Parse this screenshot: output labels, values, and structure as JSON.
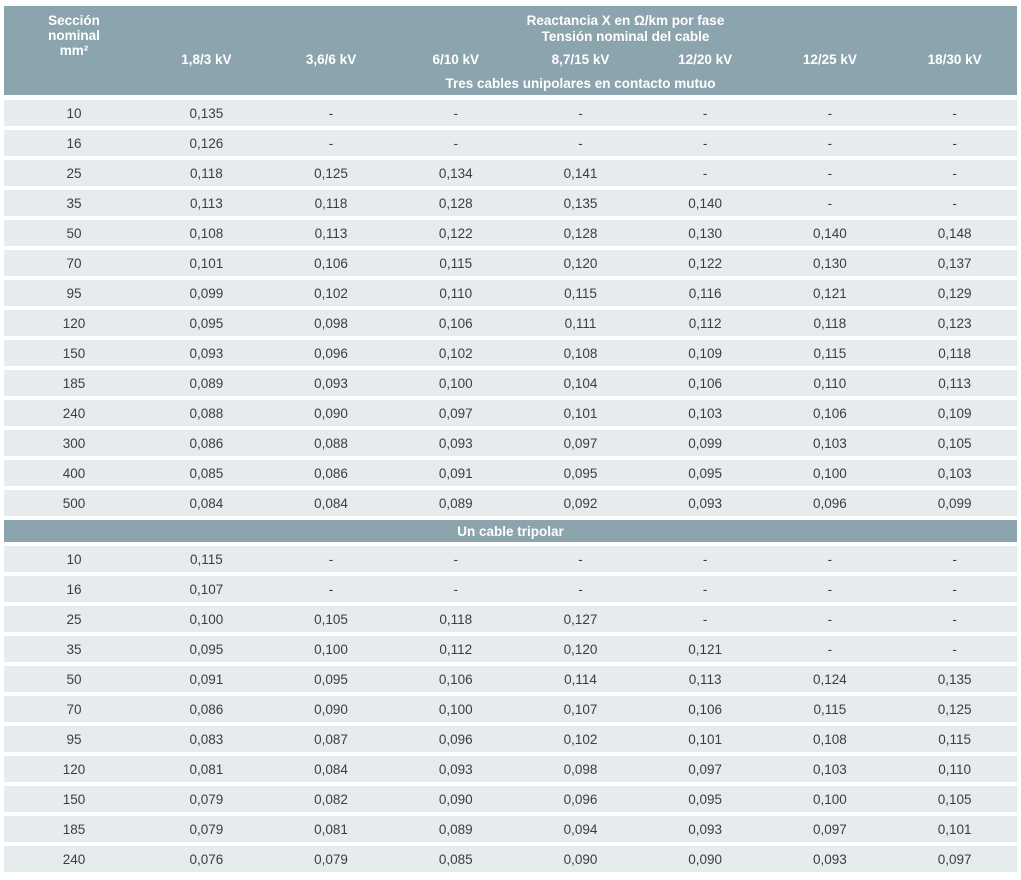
{
  "table": {
    "col1_header_lines": [
      "Sección",
      "nominal",
      "mm²"
    ],
    "title_line1": "Reactancia X en Ω/km por fase",
    "title_line2": "Tensión nominal del cable",
    "voltage_columns": [
      "1,8/3 kV",
      "3,6/6 kV",
      "6/10 kV",
      "8,7/15 kV",
      "12/20 kV",
      "12/25 kV",
      "18/30 kV"
    ],
    "sections": [
      {
        "title": "Tres cables unipolares en contacto mutuo",
        "rows": [
          {
            "mm2": "10",
            "values": [
              "0,135",
              "-",
              "-",
              "-",
              "-",
              "-",
              "-"
            ]
          },
          {
            "mm2": "16",
            "values": [
              "0,126",
              "-",
              "-",
              "-",
              "-",
              "-",
              "-"
            ]
          },
          {
            "mm2": "25",
            "values": [
              "0,118",
              "0,125",
              "0,134",
              "0,141",
              "-",
              "-",
              "-"
            ]
          },
          {
            "mm2": "35",
            "values": [
              "0,113",
              "0,118",
              "0,128",
              "0,135",
              "0,140",
              "-",
              "-"
            ]
          },
          {
            "mm2": "50",
            "values": [
              "0,108",
              "0,113",
              "0,122",
              "0,128",
              "0,130",
              "0,140",
              "0,148"
            ]
          },
          {
            "mm2": "70",
            "values": [
              "0,101",
              "0,106",
              "0,115",
              "0,120",
              "0,122",
              "0,130",
              "0,137"
            ]
          },
          {
            "mm2": "95",
            "values": [
              "0,099",
              "0,102",
              "0,110",
              "0,115",
              "0,116",
              "0,121",
              "0,129"
            ]
          },
          {
            "mm2": "120",
            "values": [
              "0,095",
              "0,098",
              "0,106",
              "0,111",
              "0,112",
              "0,118",
              "0,123"
            ]
          },
          {
            "mm2": "150",
            "values": [
              "0,093",
              "0,096",
              "0,102",
              "0,108",
              "0,109",
              "0,115",
              "0,118"
            ]
          },
          {
            "mm2": "185",
            "values": [
              "0,089",
              "0,093",
              "0,100",
              "0,104",
              "0,106",
              "0,110",
              "0,113"
            ]
          },
          {
            "mm2": "240",
            "values": [
              "0,088",
              "0,090",
              "0,097",
              "0,101",
              "0,103",
              "0,106",
              "0,109"
            ]
          },
          {
            "mm2": "300",
            "values": [
              "0,086",
              "0,088",
              "0,093",
              "0,097",
              "0,099",
              "0,103",
              "0,105"
            ]
          },
          {
            "mm2": "400",
            "values": [
              "0,085",
              "0,086",
              "0,091",
              "0,095",
              "0,095",
              "0,100",
              "0,103"
            ]
          },
          {
            "mm2": "500",
            "values": [
              "0,084",
              "0,084",
              "0,089",
              "0,092",
              "0,093",
              "0,096",
              "0,099"
            ]
          }
        ]
      },
      {
        "title": "Un cable tripolar",
        "rows": [
          {
            "mm2": "10",
            "values": [
              "0,115",
              "-",
              "-",
              "-",
              "-",
              "-",
              "-"
            ]
          },
          {
            "mm2": "16",
            "values": [
              "0,107",
              "-",
              "-",
              "-",
              "-",
              "-",
              "-"
            ]
          },
          {
            "mm2": "25",
            "values": [
              "0,100",
              "0,105",
              "0,118",
              "0,127",
              "-",
              "-",
              "-"
            ]
          },
          {
            "mm2": "35",
            "values": [
              "0,095",
              "0,100",
              "0,112",
              "0,120",
              "0,121",
              "-",
              "-"
            ]
          },
          {
            "mm2": "50",
            "values": [
              "0,091",
              "0,095",
              "0,106",
              "0,114",
              "0,113",
              "0,124",
              "0,135"
            ]
          },
          {
            "mm2": "70",
            "values": [
              "0,086",
              "0,090",
              "0,100",
              "0,107",
              "0,106",
              "0,115",
              "0,125"
            ]
          },
          {
            "mm2": "95",
            "values": [
              "0,083",
              "0,087",
              "0,096",
              "0,102",
              "0,101",
              "0,108",
              "0,115"
            ]
          },
          {
            "mm2": "120",
            "values": [
              "0,081",
              "0,084",
              "0,093",
              "0,098",
              "0,097",
              "0,103",
              "0,110"
            ]
          },
          {
            "mm2": "150",
            "values": [
              "0,079",
              "0,082",
              "0,090",
              "0,096",
              "0,095",
              "0,100",
              "0,105"
            ]
          },
          {
            "mm2": "185",
            "values": [
              "0,079",
              "0,081",
              "0,089",
              "0,094",
              "0,093",
              "0,097",
              "0,101"
            ]
          },
          {
            "mm2": "240",
            "values": [
              "0,076",
              "0,079",
              "0,085",
              "0,090",
              "0,090",
              "0,093",
              "0,097"
            ]
          }
        ]
      }
    ]
  },
  "colors": {
    "header_bg": "#8ba4ae",
    "row_bg": "#e6ebee",
    "header_text": "#ffffff",
    "data_text": "#3d3d3d"
  }
}
